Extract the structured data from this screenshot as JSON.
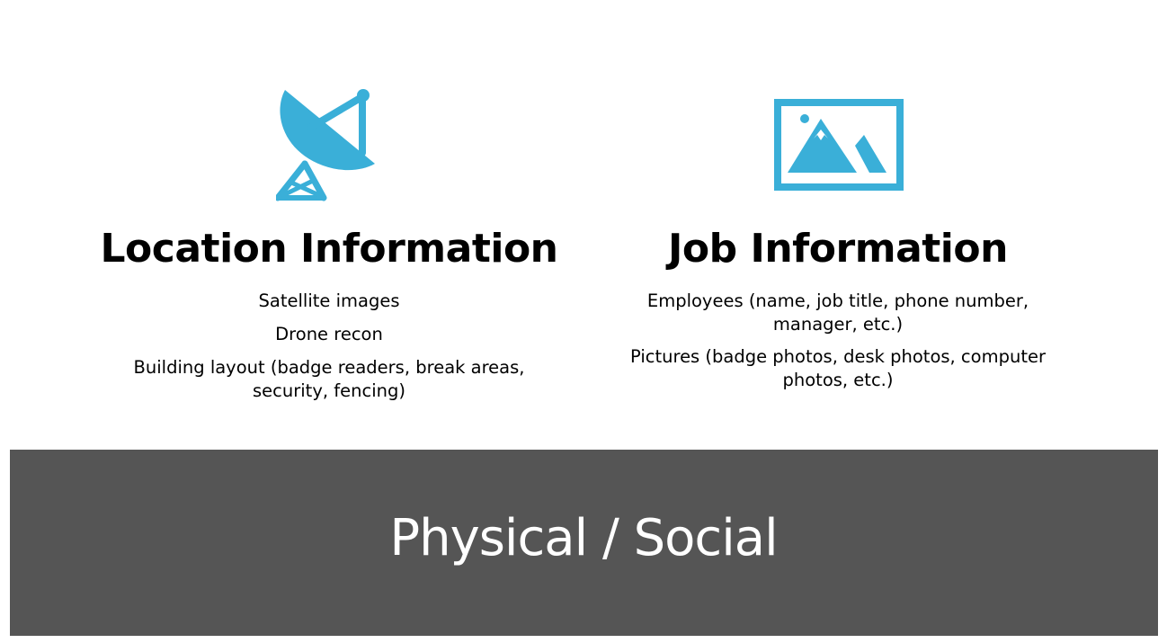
{
  "colors": {
    "accent": "#3AAFD8",
    "banner": "#555555",
    "banner_text": "#FFFFFF",
    "text": "#000000",
    "background": "#FFFFFF"
  },
  "location": {
    "icon": "satellite-dish-icon",
    "title": "Location Information",
    "bullets": [
      "Satellite images",
      "Drone recon",
      "Building layout (badge readers, break areas, security, fencing)"
    ]
  },
  "job": {
    "icon": "picture-icon",
    "title": "Job Information",
    "bullets": [
      "Employees (name, job title, phone number, manager, etc.)",
      "Pictures (badge photos, desk photos, computer photos, etc.)"
    ]
  },
  "banner": {
    "title": "Physical / Social"
  }
}
